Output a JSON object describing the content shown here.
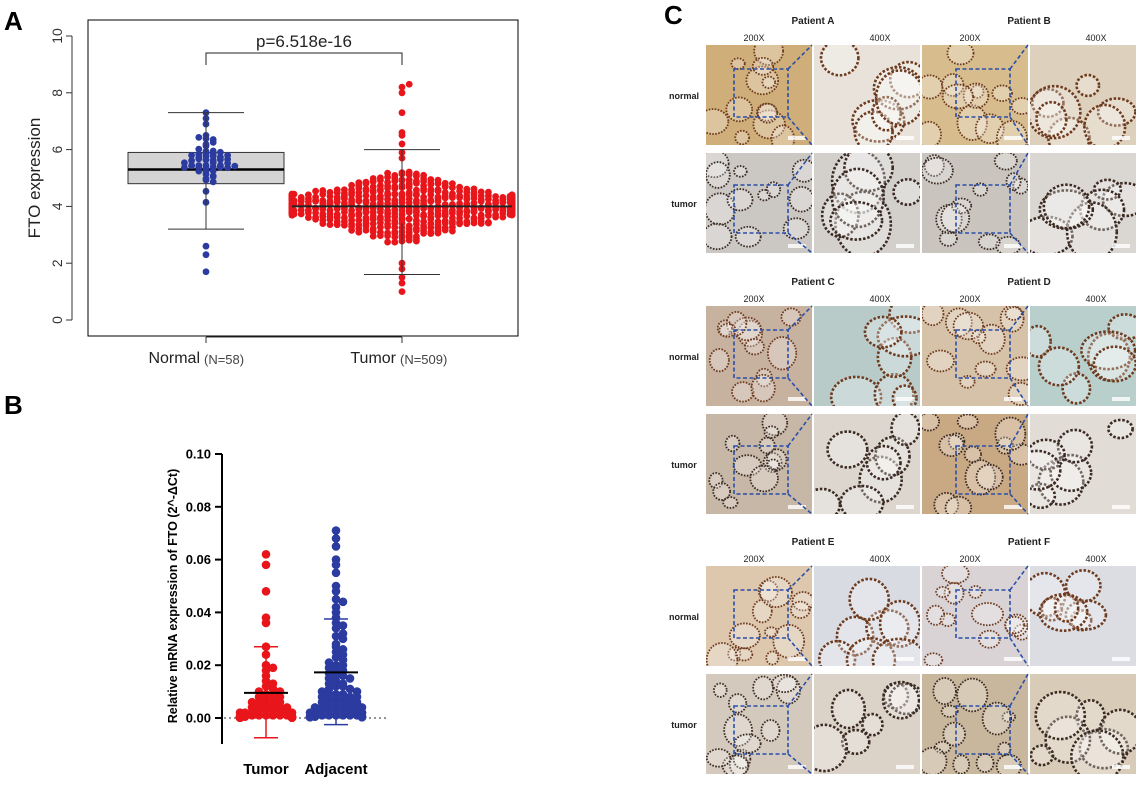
{
  "panels": {
    "a": "A",
    "b": "B",
    "c": "C"
  },
  "chart_data": [
    {
      "panel": "A",
      "type": "scatter",
      "subtype": "box-plot-with-beeswarm",
      "title": "",
      "xlabel": "",
      "ylabel": "FTO expression",
      "ylim": [
        0,
        10
      ],
      "yticks": [
        "0",
        "2",
        "4",
        "6",
        "8",
        "10"
      ],
      "grid": false,
      "categories": [
        {
          "name": "Normal",
          "n_label": "(N=58)",
          "color": "#2b3b9f",
          "box": {
            "q1": 4.8,
            "median": 5.3,
            "q3": 5.9,
            "whisker_low": 3.2,
            "whisker_high": 7.3
          },
          "points_summary": {
            "count": 58,
            "min": 1.7,
            "max": 7.3
          }
        },
        {
          "name": "Tumor",
          "n_label": "(N=509)",
          "color": "#e8161b",
          "box": {
            "q1": 3.4,
            "median": 4.0,
            "q3": 4.6,
            "whisker_low": 1.6,
            "whisker_high": 6.0
          },
          "points_summary": {
            "count": 509,
            "min": 1.0,
            "max": 8.3
          }
        }
      ],
      "annotation": {
        "text": "p=6.518e-16"
      }
    },
    {
      "panel": "B",
      "type": "scatter",
      "subtype": "dot-plot-mean-sd",
      "title": "",
      "xlabel": "",
      "ylabel": "Relative mRNA expression of FTO  (2^-ΔCt)",
      "ylim": [
        0,
        0.1
      ],
      "yticks": [
        "0.00",
        "0.02",
        "0.04",
        "0.06",
        "0.08",
        "0.10"
      ],
      "grid": false,
      "categories": [
        {
          "name": "Tumor",
          "color": "#e8161b",
          "mean": 0.0095,
          "sd_upper": 0.027,
          "sd_lower": -0.0075,
          "points": [
            0.062,
            0.058,
            0.048,
            0.038,
            0.036,
            0.027,
            0.024,
            0.02,
            0.019,
            0.018,
            0.016,
            0.014,
            0.013,
            0.012,
            0.011,
            0.01,
            0.01,
            0.009,
            0.009,
            0.008,
            0.008,
            0.007,
            0.007,
            0.006,
            0.006,
            0.006,
            0.005,
            0.005,
            0.005,
            0.004,
            0.004,
            0.004,
            0.003,
            0.003,
            0.003,
            0.003,
            0.002,
            0.002,
            0.002,
            0.002,
            0.002,
            0.001,
            0.001,
            0.001,
            0.001,
            0.001,
            0.001,
            0.0005,
            0.0005,
            0.0005,
            0.0005,
            0.0005,
            0.0002,
            0.0002,
            0.0002,
            0.0002,
            0.0002,
            0.0002,
            0.0001,
            0.0001,
            0.0001,
            0.0001,
            0.0001,
            0.0001
          ]
        },
        {
          "name": "Adjacent",
          "color": "#2b3b9f",
          "mean": 0.0173,
          "sd_upper": 0.0375,
          "sd_lower": -0.0025,
          "points": [
            0.071,
            0.068,
            0.065,
            0.06,
            0.058,
            0.055,
            0.05,
            0.048,
            0.045,
            0.044,
            0.042,
            0.04,
            0.038,
            0.036,
            0.035,
            0.034,
            0.032,
            0.031,
            0.03,
            0.028,
            0.027,
            0.026,
            0.025,
            0.024,
            0.023,
            0.022,
            0.021,
            0.02,
            0.02,
            0.019,
            0.018,
            0.018,
            0.017,
            0.016,
            0.016,
            0.015,
            0.015,
            0.014,
            0.013,
            0.013,
            0.012,
            0.012,
            0.011,
            0.011,
            0.01,
            0.01,
            0.009,
            0.009,
            0.009,
            0.008,
            0.008,
            0.008,
            0.007,
            0.007,
            0.007,
            0.006,
            0.006,
            0.006,
            0.005,
            0.005,
            0.005,
            0.005,
            0.004,
            0.004,
            0.004,
            0.004,
            0.003,
            0.003,
            0.003,
            0.003,
            0.003,
            0.002,
            0.002,
            0.002,
            0.002,
            0.002,
            0.001,
            0.001,
            0.001,
            0.001,
            0.001,
            0.001,
            0.0005,
            0.0005,
            0.0005,
            0.0005,
            0.0003,
            0.0003,
            0.0003,
            0.0003
          ]
        }
      ]
    }
  ],
  "ihc": {
    "mag_low": "200X",
    "mag_high": "400X",
    "row_labels": {
      "normal": "normal",
      "tumor": "tumor"
    },
    "patients": [
      "Patient A",
      "Patient B",
      "Patient C",
      "Patient D",
      "Patient E",
      "Patient F"
    ]
  }
}
